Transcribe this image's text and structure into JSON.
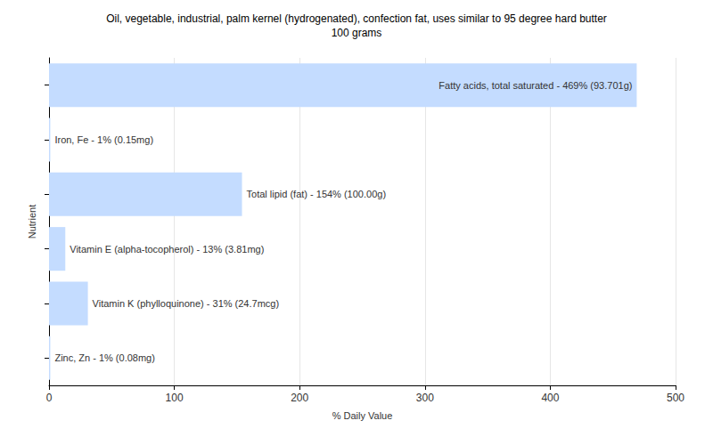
{
  "chart_data": {
    "type": "bar",
    "orientation": "horizontal",
    "title": "Oil, vegetable, industrial, palm kernel (hydrogenated), confection fat, uses similar to 95 degree hard butter",
    "subtitle": "100 grams",
    "x_label": "% Daily Value",
    "y_label": "Nutrient",
    "categories": [
      "Fatty acids, total saturated",
      "Iron, Fe",
      "Total lipid (fat)",
      "Vitamin E (alpha-tocopherol)",
      "Vitamin K (phylloquinone)",
      "Zinc, Zn"
    ],
    "values": [
      469,
      1,
      154,
      13,
      31,
      1
    ],
    "value_labels": [
      "Fatty acids, total saturated - 469% (93.701g)",
      "Iron, Fe - 1% (0.15mg)",
      "Total lipid (fat) - 154% (100.00g)",
      "Vitamin E (alpha-tocopherol) - 13% (3.81mg)",
      "Vitamin K (phylloquinone) - 31% (24.7mcg)",
      "Zinc, Zn - 1% (0.08mg)"
    ],
    "data_labels": true,
    "color": "#c4dcff",
    "xlim": [
      0,
      500
    ],
    "xticks": [
      0,
      100,
      200,
      300,
      400,
      500
    ],
    "grid": true,
    "tick_labels": "x"
  }
}
